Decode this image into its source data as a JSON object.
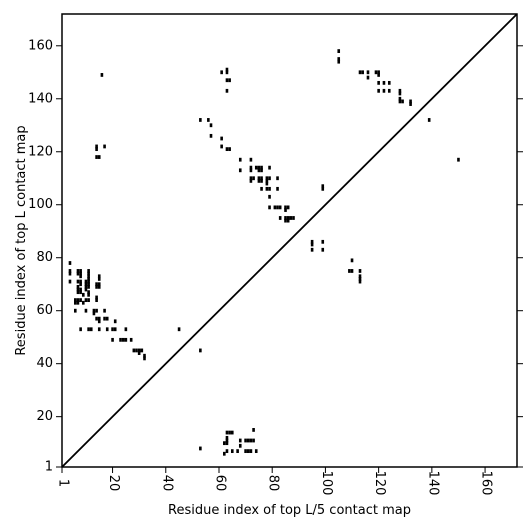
{
  "chart_data": {
    "type": "scatter",
    "title": "",
    "xlabel": "Residue index of top L/5 contact map",
    "ylabel": "Residue index of top L contact map",
    "xlim": [
      1,
      172
    ],
    "ylim": [
      1,
      172
    ],
    "xticks": [
      {
        "value": 1,
        "label": "1"
      },
      {
        "value": 20,
        "label": "20"
      },
      {
        "value": 40,
        "label": "40"
      },
      {
        "value": 60,
        "label": "60"
      },
      {
        "value": 80,
        "label": "80"
      },
      {
        "value": 100,
        "label": "100"
      },
      {
        "value": 120,
        "label": "120"
      },
      {
        "value": 140,
        "label": "140"
      },
      {
        "value": 160,
        "label": "160"
      }
    ],
    "yticks": [
      {
        "value": 1,
        "label": "1"
      },
      {
        "value": 20,
        "label": "20"
      },
      {
        "value": 40,
        "label": "40"
      },
      {
        "value": 60,
        "label": "60"
      },
      {
        "value": 80,
        "label": "80"
      },
      {
        "value": 100,
        "label": "100"
      },
      {
        "value": 120,
        "label": "120"
      },
      {
        "value": 140,
        "label": "140"
      },
      {
        "value": 160,
        "label": "160"
      }
    ],
    "diagonal": true,
    "grid": false,
    "series": [
      {
        "points": [
          [
            16,
            149
          ],
          [
            61,
            150
          ],
          [
            63,
            151
          ],
          [
            63,
            150
          ],
          [
            63,
            147
          ],
          [
            64,
            147
          ],
          [
            63,
            143
          ],
          [
            53,
            132
          ],
          [
            56,
            132
          ],
          [
            57,
            130
          ],
          [
            57,
            126
          ],
          [
            61,
            125
          ],
          [
            61,
            122
          ],
          [
            14,
            122
          ],
          [
            14,
            121
          ],
          [
            17,
            122
          ],
          [
            14,
            118
          ],
          [
            15,
            118
          ],
          [
            63,
            121
          ],
          [
            64,
            121
          ],
          [
            68,
            117
          ],
          [
            72,
            117
          ],
          [
            68,
            113
          ],
          [
            72,
            114
          ],
          [
            72,
            113
          ],
          [
            74,
            114
          ],
          [
            75,
            114
          ],
          [
            76,
            114
          ],
          [
            75,
            113
          ],
          [
            76,
            113
          ],
          [
            79,
            114
          ],
          [
            72,
            110
          ],
          [
            73,
            110
          ],
          [
            72,
            109
          ],
          [
            75,
            110
          ],
          [
            75,
            109
          ],
          [
            76,
            110
          ],
          [
            76,
            109
          ],
          [
            78,
            110
          ],
          [
            79,
            110
          ],
          [
            78,
            109
          ],
          [
            78,
            108
          ],
          [
            82,
            110
          ],
          [
            76,
            106
          ],
          [
            78,
            106
          ],
          [
            79,
            106
          ],
          [
            82,
            106
          ],
          [
            79,
            103
          ],
          [
            79,
            99
          ],
          [
            81,
            99
          ],
          [
            82,
            99
          ],
          [
            83,
            99
          ],
          [
            85,
            99
          ],
          [
            86,
            99
          ],
          [
            85,
            98
          ],
          [
            83,
            95
          ],
          [
            85,
            95
          ],
          [
            86,
            95
          ],
          [
            85,
            94
          ],
          [
            86,
            94
          ],
          [
            87,
            95
          ],
          [
            88,
            95
          ],
          [
            99,
            107
          ],
          [
            99,
            106
          ],
          [
            95,
            86
          ],
          [
            95,
            85
          ],
          [
            95,
            83
          ],
          [
            99,
            86
          ],
          [
            99,
            83
          ],
          [
            105,
            158
          ],
          [
            105,
            155
          ],
          [
            105,
            154
          ],
          [
            113,
            150
          ],
          [
            114,
            150
          ],
          [
            116,
            150
          ],
          [
            116,
            148
          ],
          [
            119,
            150
          ],
          [
            120,
            150
          ],
          [
            120,
            149
          ],
          [
            120,
            146
          ],
          [
            122,
            146
          ],
          [
            124,
            146
          ],
          [
            120,
            143
          ],
          [
            122,
            143
          ],
          [
            124,
            143
          ],
          [
            128,
            143
          ],
          [
            128,
            142
          ],
          [
            128,
            140
          ],
          [
            128,
            139
          ],
          [
            129,
            139
          ],
          [
            132,
            139
          ],
          [
            132,
            138
          ],
          [
            139,
            132
          ],
          [
            150,
            117
          ],
          [
            110,
            79
          ],
          [
            109,
            75
          ],
          [
            110,
            75
          ],
          [
            113,
            75
          ],
          [
            113,
            73
          ],
          [
            113,
            72
          ],
          [
            113,
            71
          ],
          [
            4,
            78
          ],
          [
            4,
            75
          ],
          [
            4,
            74
          ],
          [
            7,
            75
          ],
          [
            8,
            75
          ],
          [
            11,
            75
          ],
          [
            7,
            74
          ],
          [
            8,
            74
          ],
          [
            11,
            74
          ],
          [
            8,
            73
          ],
          [
            11,
            73
          ],
          [
            15,
            73
          ],
          [
            11,
            72
          ],
          [
            15,
            72
          ],
          [
            4,
            71
          ],
          [
            7,
            71
          ],
          [
            8,
            71
          ],
          [
            10,
            71
          ],
          [
            11,
            71
          ],
          [
            8,
            70
          ],
          [
            10,
            70
          ],
          [
            11,
            70
          ],
          [
            14,
            70
          ],
          [
            15,
            70
          ],
          [
            7,
            69
          ],
          [
            10,
            69
          ],
          [
            11,
            69
          ],
          [
            14,
            69
          ],
          [
            15,
            69
          ],
          [
            7,
            68
          ],
          [
            8,
            68
          ],
          [
            10,
            68
          ],
          [
            7,
            67
          ],
          [
            8,
            67
          ],
          [
            11,
            67
          ],
          [
            9,
            66
          ],
          [
            11,
            66
          ],
          [
            14,
            65
          ],
          [
            6,
            64
          ],
          [
            7,
            64
          ],
          [
            8,
            64
          ],
          [
            10,
            64
          ],
          [
            11,
            64
          ],
          [
            14,
            64
          ],
          [
            6,
            63
          ],
          [
            7,
            63
          ],
          [
            9,
            63
          ],
          [
            6,
            60
          ],
          [
            10,
            60
          ],
          [
            13,
            60
          ],
          [
            14,
            60
          ],
          [
            17,
            60
          ],
          [
            13,
            59
          ],
          [
            14,
            57
          ],
          [
            15,
            57
          ],
          [
            17,
            57
          ],
          [
            18,
            57
          ],
          [
            21,
            56
          ],
          [
            15,
            56
          ],
          [
            8,
            53
          ],
          [
            11,
            53
          ],
          [
            12,
            53
          ],
          [
            15,
            53
          ],
          [
            18,
            53
          ],
          [
            20,
            53
          ],
          [
            21,
            53
          ],
          [
            25,
            53
          ],
          [
            20,
            49
          ],
          [
            23,
            49
          ],
          [
            24,
            49
          ],
          [
            25,
            49
          ],
          [
            27,
            49
          ],
          [
            28,
            45
          ],
          [
            29,
            45
          ],
          [
            30,
            45
          ],
          [
            31,
            45
          ],
          [
            30,
            44
          ],
          [
            32,
            43
          ],
          [
            32,
            42
          ],
          [
            45,
            53
          ],
          [
            53,
            45
          ],
          [
            53,
            8
          ],
          [
            63,
            14
          ],
          [
            64,
            14
          ],
          [
            65,
            14
          ],
          [
            63,
            12
          ],
          [
            63,
            11
          ],
          [
            62,
            10
          ],
          [
            63,
            10
          ],
          [
            68,
            11
          ],
          [
            70,
            11
          ],
          [
            71,
            11
          ],
          [
            72,
            11
          ],
          [
            73,
            11
          ],
          [
            68,
            9
          ],
          [
            73,
            15
          ],
          [
            62,
            6
          ],
          [
            63,
            7
          ],
          [
            65,
            7
          ],
          [
            67,
            7
          ],
          [
            70,
            7
          ],
          [
            71,
            7
          ],
          [
            72,
            7
          ],
          [
            74,
            7
          ]
        ]
      }
    ]
  }
}
